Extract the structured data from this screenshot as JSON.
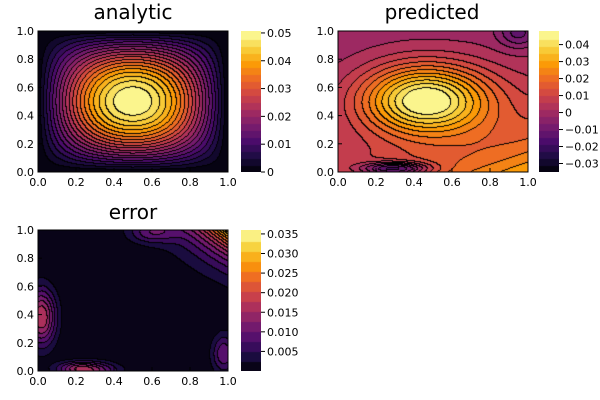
{
  "colormap": {
    "name": "inferno",
    "stops": [
      "#000004",
      "#1b0c41",
      "#4a0c6b",
      "#781c6d",
      "#a52c60",
      "#cf4446",
      "#ed6925",
      "#fb9b06",
      "#f7d13d",
      "#fcffa4"
    ]
  },
  "contour_color": "#000000",
  "chart_data": [
    {
      "type": "heatmap",
      "title": "analytic",
      "xlim": [
        0,
        1
      ],
      "ylim": [
        0,
        1
      ],
      "x_ticks": [
        "0.0",
        "0.2",
        "0.4",
        "0.6",
        "0.8",
        "1.0"
      ],
      "y_ticks": [
        "0.0",
        "0.2",
        "0.4",
        "0.6",
        "0.8",
        "1.0"
      ],
      "field": "sin(pi x) sin(pi y) / (2 pi^2)",
      "levels": 20,
      "color_range": [
        0,
        0.0507
      ],
      "colorbar_ticks": [
        "0",
        "0.01",
        "0.02",
        "0.03",
        "0.04",
        "0.05"
      ],
      "colorbar_values": [
        0,
        0.01,
        0.02,
        0.03,
        0.04,
        0.05
      ]
    },
    {
      "type": "heatmap",
      "title": "predicted",
      "xlim": [
        0,
        1
      ],
      "ylim": [
        0,
        1
      ],
      "x_ticks": [
        "0.0",
        "0.2",
        "0.4",
        "0.6",
        "0.8",
        "1.0"
      ],
      "y_ticks": [
        "0.0",
        "0.2",
        "0.4",
        "0.6",
        "0.8",
        "1.0"
      ],
      "field": "analytic solution plus smooth network error",
      "peak": {
        "x": 0.46,
        "y": 0.51,
        "value": 0.047
      },
      "levels": 20,
      "color_range": [
        -0.035,
        0.048
      ],
      "colorbar_ticks": [
        "0.04",
        "0.03",
        "0.02",
        "0.01",
        "0",
        "−0.01",
        "−0.02",
        "−0.03"
      ],
      "colorbar_values": [
        0.04,
        0.03,
        0.02,
        0.01,
        0,
        -0.01,
        -0.02,
        -0.03
      ]
    },
    {
      "type": "heatmap",
      "title": "error",
      "xlim": [
        0,
        1
      ],
      "ylim": [
        0,
        1
      ],
      "x_ticks": [
        "0.0",
        "0.2",
        "0.4",
        "0.6",
        "0.8",
        "1.0"
      ],
      "y_ticks": [
        "0.0",
        "0.2",
        "0.4",
        "0.6",
        "0.8",
        "1.0"
      ],
      "field": "|predicted - analytic|",
      "max_error": {
        "x": 1.0,
        "y": 1.0,
        "value": 0.036
      },
      "levels": 14,
      "color_range": [
        0,
        0.036
      ],
      "colorbar_ticks": [
        "0.035",
        "0.030",
        "0.025",
        "0.020",
        "0.015",
        "0.010",
        "0.005"
      ],
      "colorbar_values": [
        0.035,
        0.03,
        0.025,
        0.02,
        0.015,
        0.01,
        0.005
      ]
    }
  ]
}
